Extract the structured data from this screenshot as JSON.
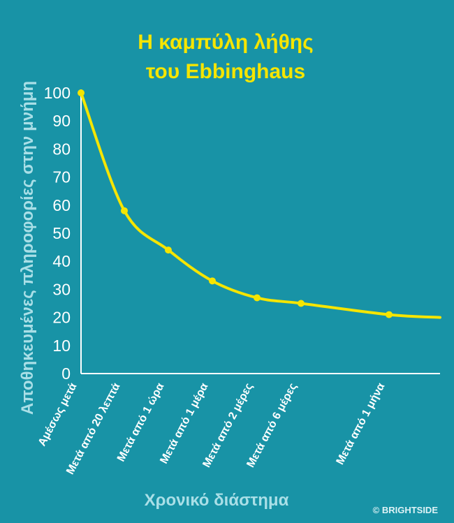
{
  "title_lines": [
    "Η καμπύλη λήθης",
    "του Ebbinghaus"
  ],
  "credit": "© BRIGHTSIDE",
  "colors": {
    "background": "#1893a6",
    "curve": "#f5e500",
    "axis": "#ffffff",
    "axis_label": "#a9dfe7",
    "title": "#f5e500"
  },
  "chart_data": {
    "type": "line",
    "title": "Η καμπύλη λήθης του Ebbinghaus",
    "xlabel": "Χρονικό διάστημα",
    "ylabel": "Αποθηκευμένες πληροφορίες στην μνήμη",
    "ylim": [
      0,
      100
    ],
    "yticks": [
      0,
      10,
      20,
      30,
      40,
      50,
      60,
      70,
      80,
      90,
      100
    ],
    "grid": false,
    "legend": "none",
    "categories": [
      "Αμέσως μετά",
      "Μετά από 20 λεπτά",
      "Μετά από 1 ώρα",
      "Μετά από 1 μέρα",
      "Μετά από 2 μέρες",
      "Μετά από 6 μέρες",
      "Μετά από 1 μήνα"
    ],
    "values": [
      100,
      58,
      44,
      33,
      27,
      25,
      21
    ],
    "line_end_value": 20
  }
}
